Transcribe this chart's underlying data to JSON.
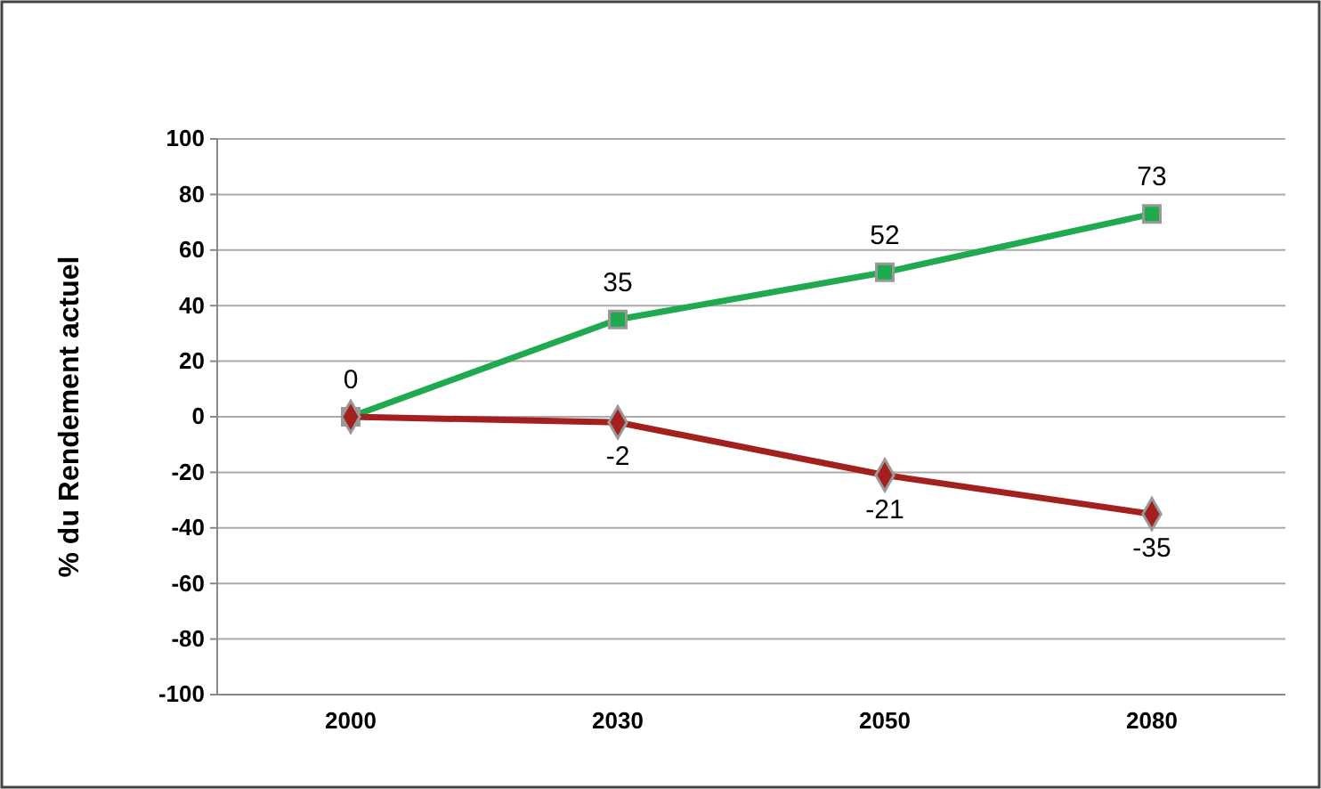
{
  "chart_data": {
    "type": "line",
    "ylabel": "% du Rendement actuel",
    "categories": [
      "2000",
      "2030",
      "2050",
      "2080"
    ],
    "series": [
      {
        "color": "#1faa4f",
        "marker": "square",
        "values": [
          0,
          35,
          52,
          73
        ],
        "value_labels": [
          "0",
          "35",
          "52",
          "73"
        ]
      },
      {
        "color": "#a3201f",
        "marker": "diamond",
        "values": [
          0,
          -2,
          -21,
          -35
        ],
        "value_labels": [
          null,
          "-2",
          "-21",
          "-35"
        ]
      }
    ],
    "ylim": [
      -100,
      100
    ],
    "yticks": [
      -100,
      -80,
      -60,
      -40,
      -20,
      0,
      20,
      40,
      60,
      80,
      100
    ],
    "grid": "y",
    "line_style": "solid"
  }
}
